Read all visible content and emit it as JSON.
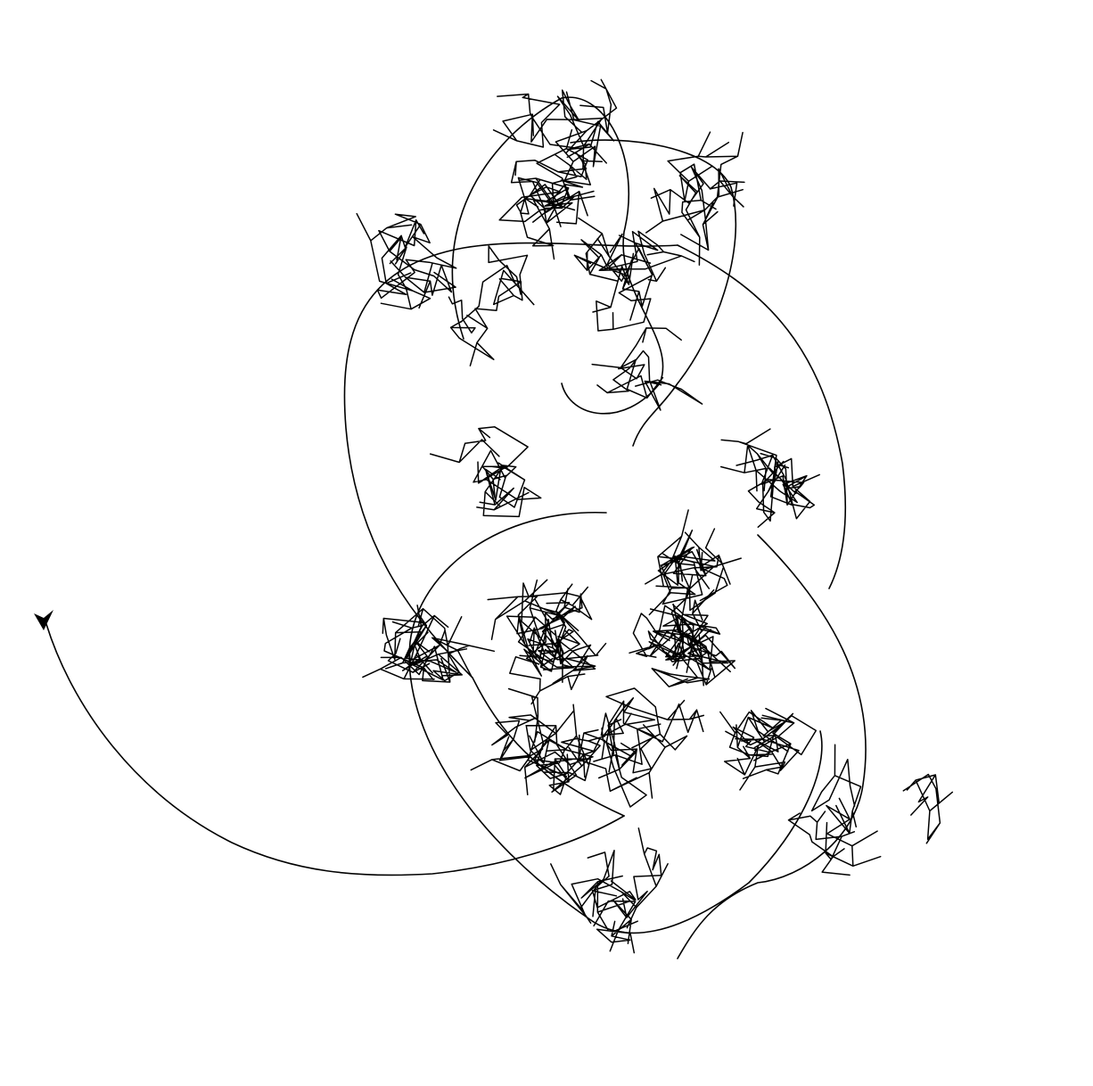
{
  "drawing": {
    "description_visible_text": "",
    "stroke_color": "#000000",
    "background_color": "#ffffff",
    "cursor_icon": "turtle-arrow-icon"
  }
}
